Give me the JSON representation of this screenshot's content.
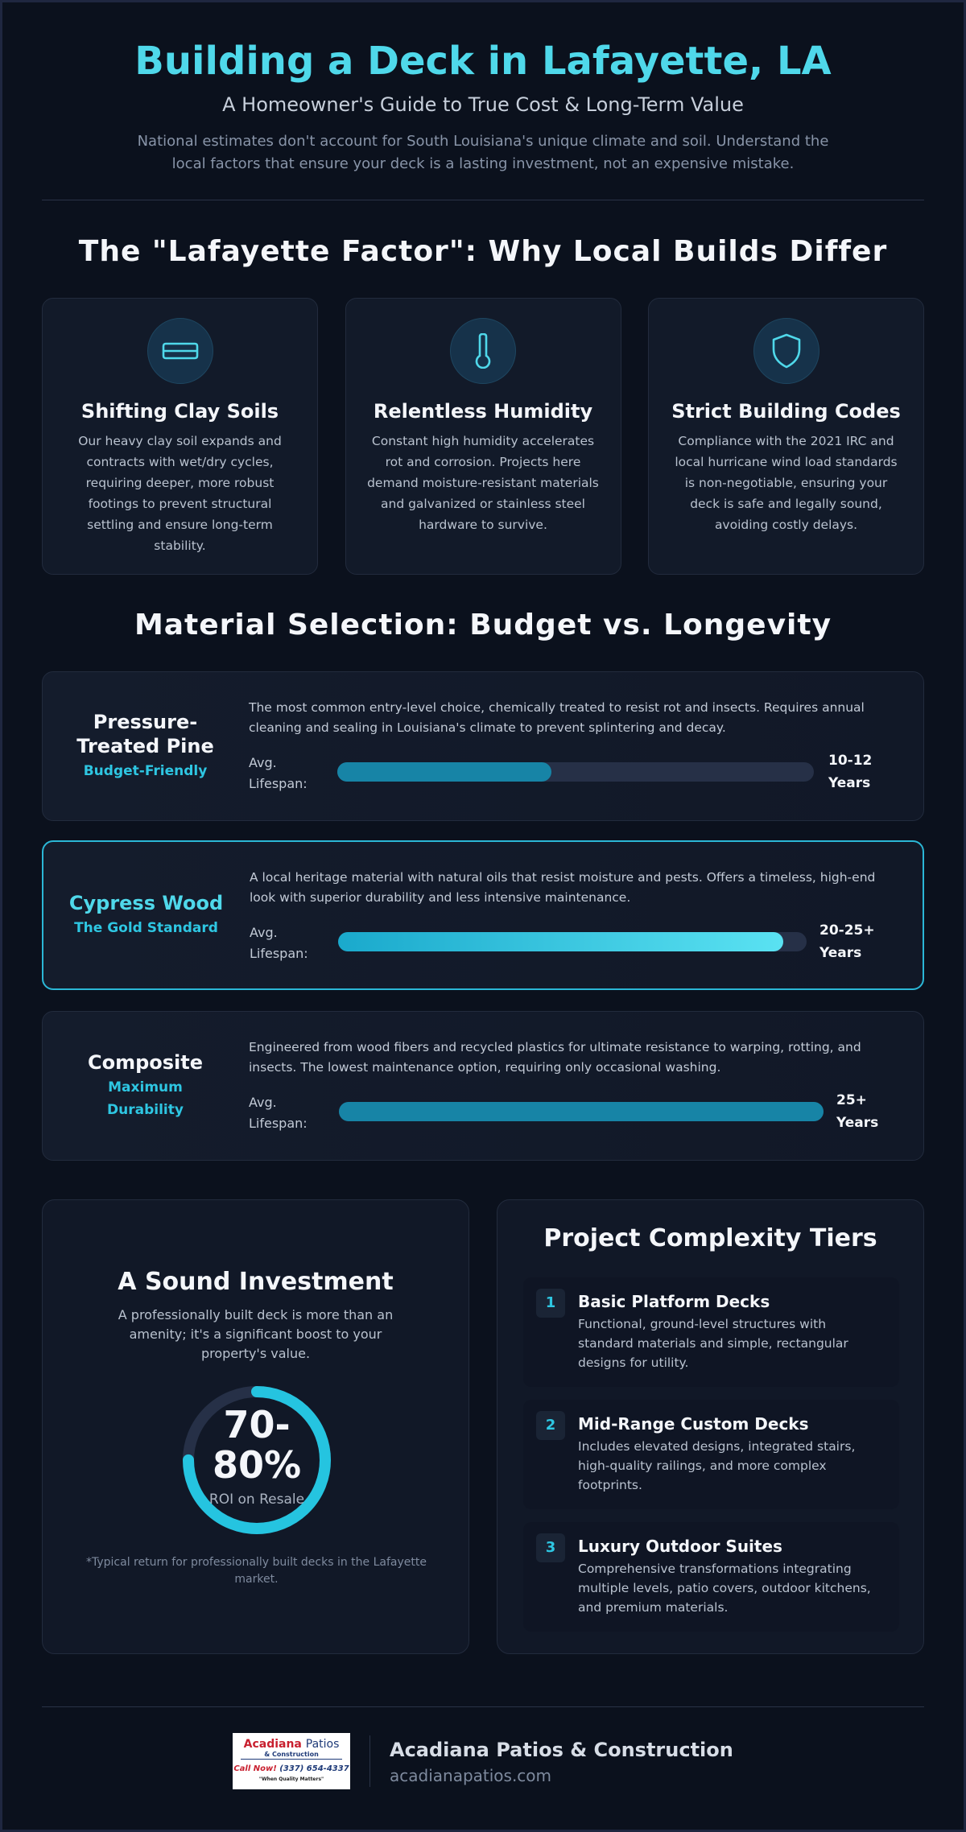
{
  "header": {
    "title": "Building a Deck in Lafayette, LA",
    "subtitle": "A Homeowner's Guide to True Cost & Long-Term Value",
    "intro_line1": "National estimates don't account for South Louisiana's unique climate and soil. Understand the",
    "intro_line2": "local factors that ensure your deck is a lasting investment, not an expensive mistake."
  },
  "factors": {
    "title": "The \"Lafayette Factor\": Why Local Builds Differ",
    "cards": [
      {
        "icon": "clay-soil-icon",
        "title": "Shifting Clay Soils",
        "text": "Our heavy clay soil expands and contracts with wet/dry cycles, requiring deeper, more robust footings to prevent structural settling and ensure long-term stability."
      },
      {
        "icon": "thermometer-icon",
        "title": "Relentless Humidity",
        "text": "Constant high humidity accelerates rot and corrosion. Projects here demand moisture-resistant materials and galvanized or stainless steel hardware to survive."
      },
      {
        "icon": "shield-icon",
        "title": "Strict Building Codes",
        "text": "Compliance with the 2021 IRC and local hurricane wind load standards is non-negotiable, ensuring your deck is safe and legally sound, avoiding costly delays."
      }
    ]
  },
  "materials": {
    "title": "Material Selection: Budget vs. Longevity",
    "lifespan_label_1": "Avg.",
    "lifespan_label_2": "Lifespan:",
    "items": [
      {
        "name_1": "Pressure-",
        "name_2": "Treated Pine",
        "tag_1": "Budget-Friendly",
        "tag_2": "",
        "desc": "The most common entry-level choice, chemically treated to resist rot and insects. Requires annual cleaning and sealing in Louisiana's climate to prevent splintering and decay.",
        "life_1": "10-12",
        "life_2": "Years",
        "fill_pct": 45
      },
      {
        "name_1": "Cypress Wood",
        "name_2": "",
        "tag_1": "The Gold Standard",
        "tag_2": "",
        "desc": "A local heritage material with natural oils that resist moisture and pests. Offers a timeless, high-end look with superior durability and less intensive maintenance.",
        "life_1": "20-25+",
        "life_2": "Years",
        "fill_pct": 95
      },
      {
        "name_1": "Composite",
        "name_2": "",
        "tag_1": "Maximum",
        "tag_2": "Durability",
        "desc": "Engineered from wood fibers and recycled plastics for ultimate resistance to warping, rotting, and insects. The lowest maintenance option, requiring only occasional washing.",
        "life_1": "25+",
        "life_2": "Years",
        "fill_pct": 100
      }
    ]
  },
  "investment": {
    "title": "A Sound Investment",
    "text": "A professionally built deck is more than an amenity; it's a significant boost to your property's value.",
    "roi_line1": "70-",
    "roi_line2": "80%",
    "roi_label": "ROI on Resale",
    "roi_pct": 75,
    "note": "*Typical return for professionally built decks in the Lafayette market."
  },
  "tiers": {
    "title": "Project Complexity Tiers",
    "items": [
      {
        "num": "1",
        "title": "Basic Platform Decks",
        "text": "Functional, ground-level structures with standard materials and simple, rectangular designs for utility."
      },
      {
        "num": "2",
        "title": "Mid-Range Custom Decks",
        "text": "Includes elevated designs, integrated stairs, high-quality railings, and more complex footprints."
      },
      {
        "num": "3",
        "title": "Luxury Outdoor Suites",
        "text": "Comprehensive transformations integrating multiple levels, patio covers, outdoor kitchens, and premium materials."
      }
    ]
  },
  "footer": {
    "logo_word1": "Acadiana",
    "logo_word2": "Patios",
    "logo_line2": "& Construction",
    "logo_call": "Call Now!",
    "logo_phone": "(337) 654-4337",
    "logo_tagline": "\"When Quality Matters\"",
    "company": "Acadiana Patios & Construction",
    "url": "acadianapatios.com"
  },
  "colors": {
    "accent": "#4fd8ea",
    "background": "#0b111d",
    "bar": "#1784a6"
  }
}
